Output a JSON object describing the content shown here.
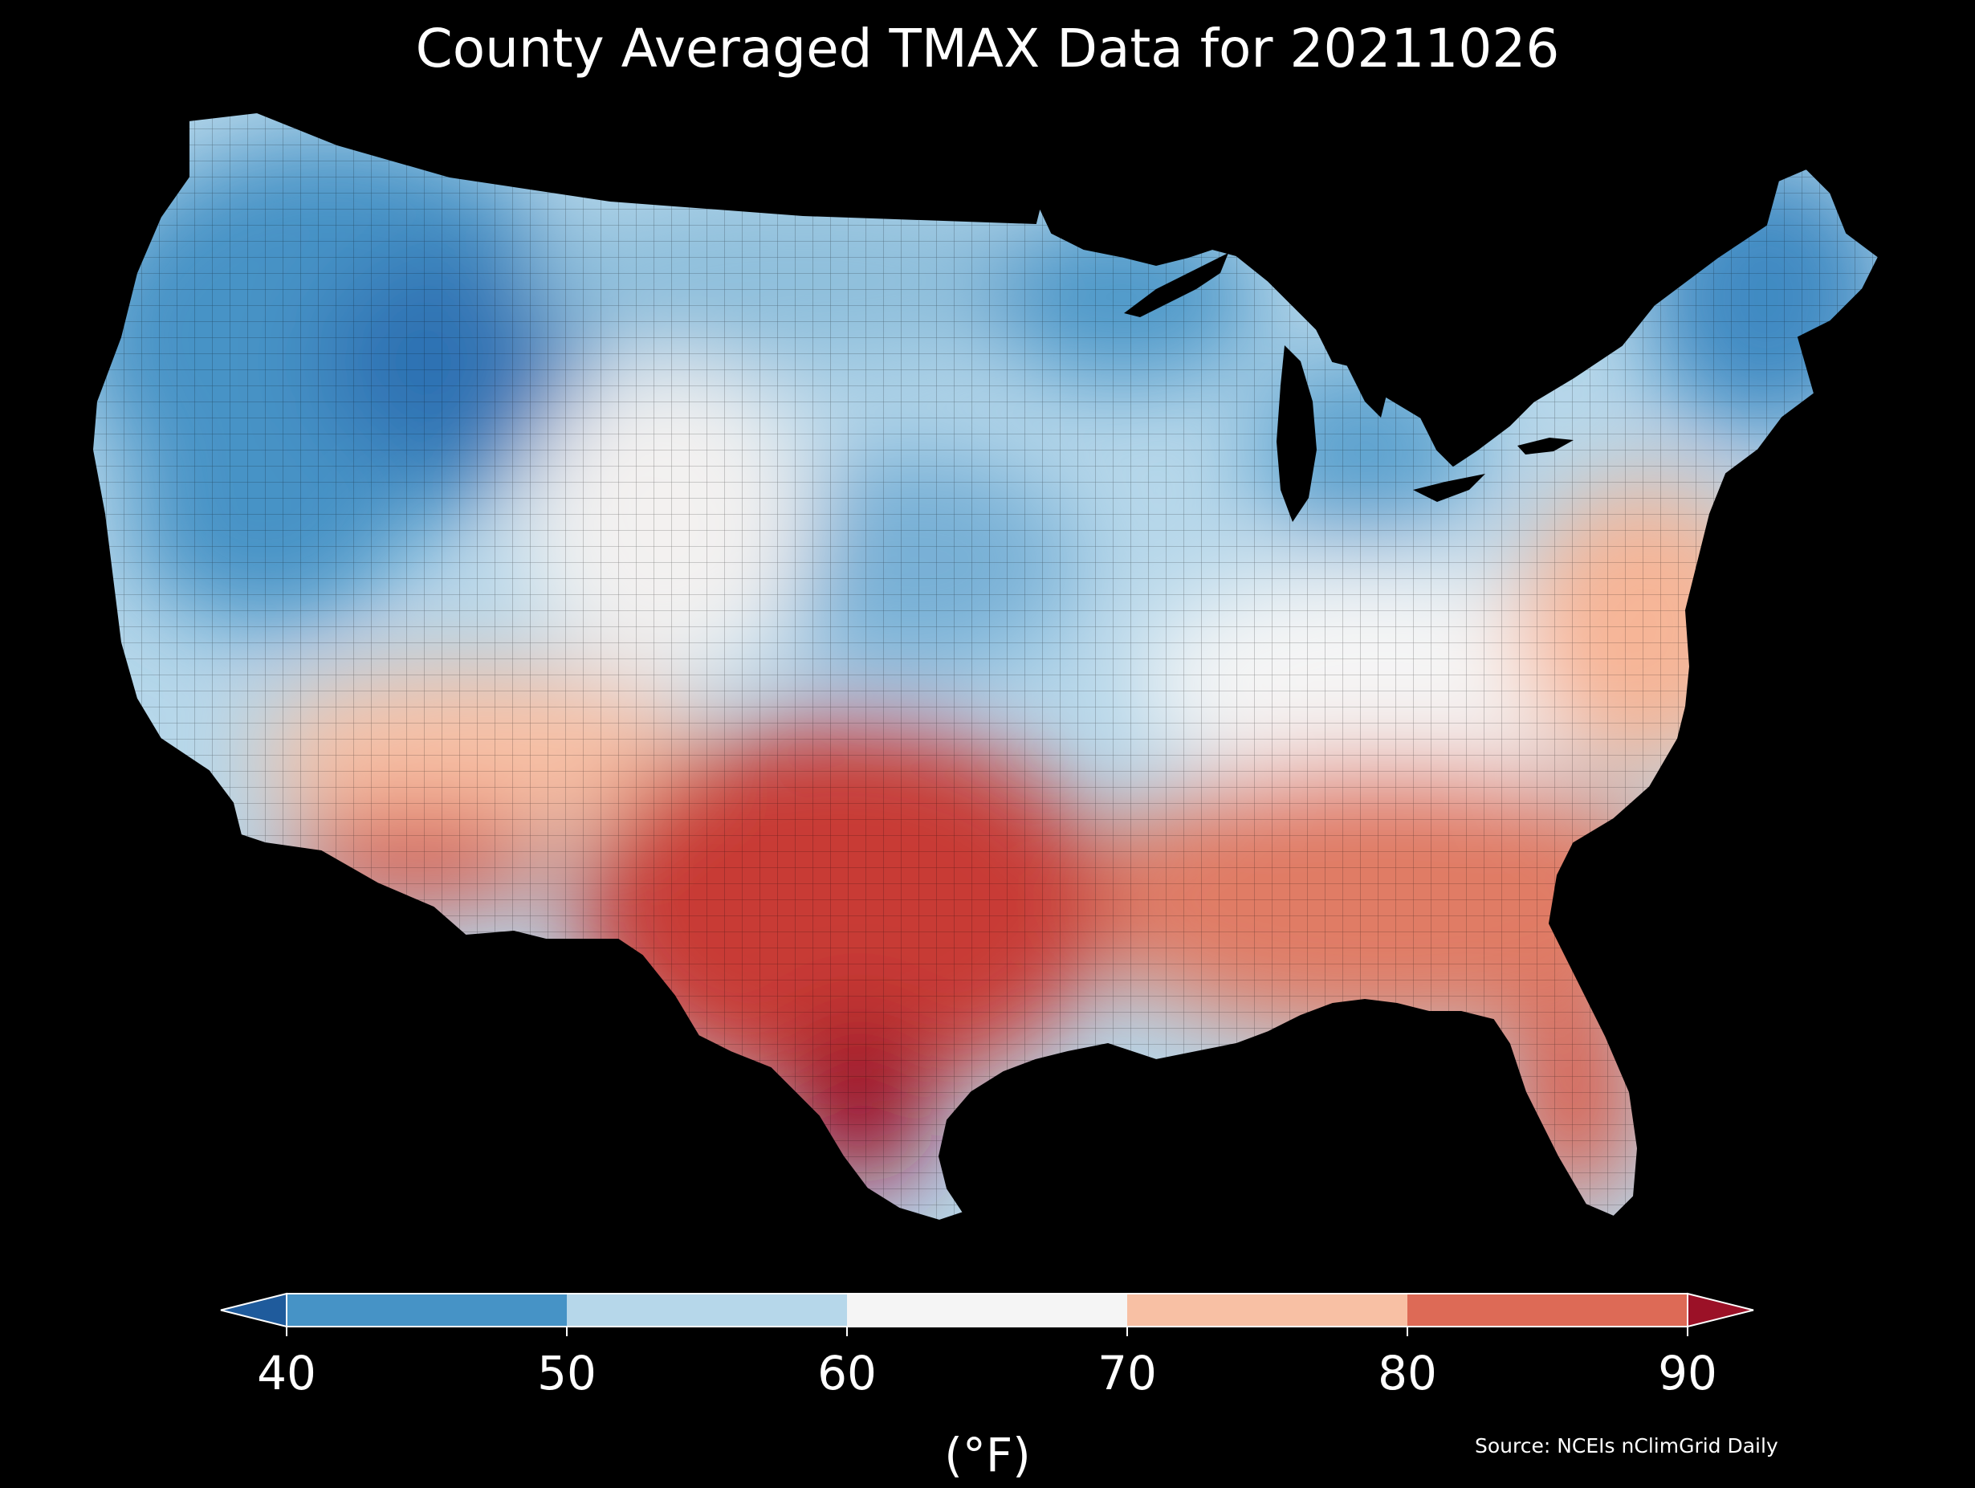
{
  "title": "County Averaged TMAX Data for 20211026",
  "map": {
    "region": "contiguous-us-counties",
    "variable": "TMAX",
    "date": "20211026",
    "background": "#000000",
    "regional_pattern": {
      "northwest": "40-50",
      "northern-rockies": "40-50",
      "upper-great-plains": "50-60",
      "great-lakes": "50-60",
      "new-england": "40-50",
      "central-plains": "50-60",
      "ohio-valley": "60-70",
      "mid-atlantic": "70-80",
      "southeast": "80-90",
      "texas": "80-90",
      "south-texas": ">90",
      "desert-southwest": "80-90",
      "california-coast": "50-70",
      "florida": "80-90"
    }
  },
  "colorbar": {
    "ticks": [
      "40",
      "50",
      "60",
      "70",
      "80",
      "90"
    ],
    "unit": "(°F)",
    "bins": [
      {
        "range": "<40",
        "color": "#1f5b9c"
      },
      {
        "range": "40-50",
        "color": "#4693c6"
      },
      {
        "range": "50-60",
        "color": "#b6d7ea"
      },
      {
        "range": "60-70",
        "color": "#f5f5f5"
      },
      {
        "range": "70-80",
        "color": "#f8c0a4"
      },
      {
        "range": "80-90",
        "color": "#dd6a56"
      },
      {
        "range": ">90",
        "color": "#9b1127"
      }
    ]
  },
  "source": "Source: NCEIs nClimGrid Daily"
}
